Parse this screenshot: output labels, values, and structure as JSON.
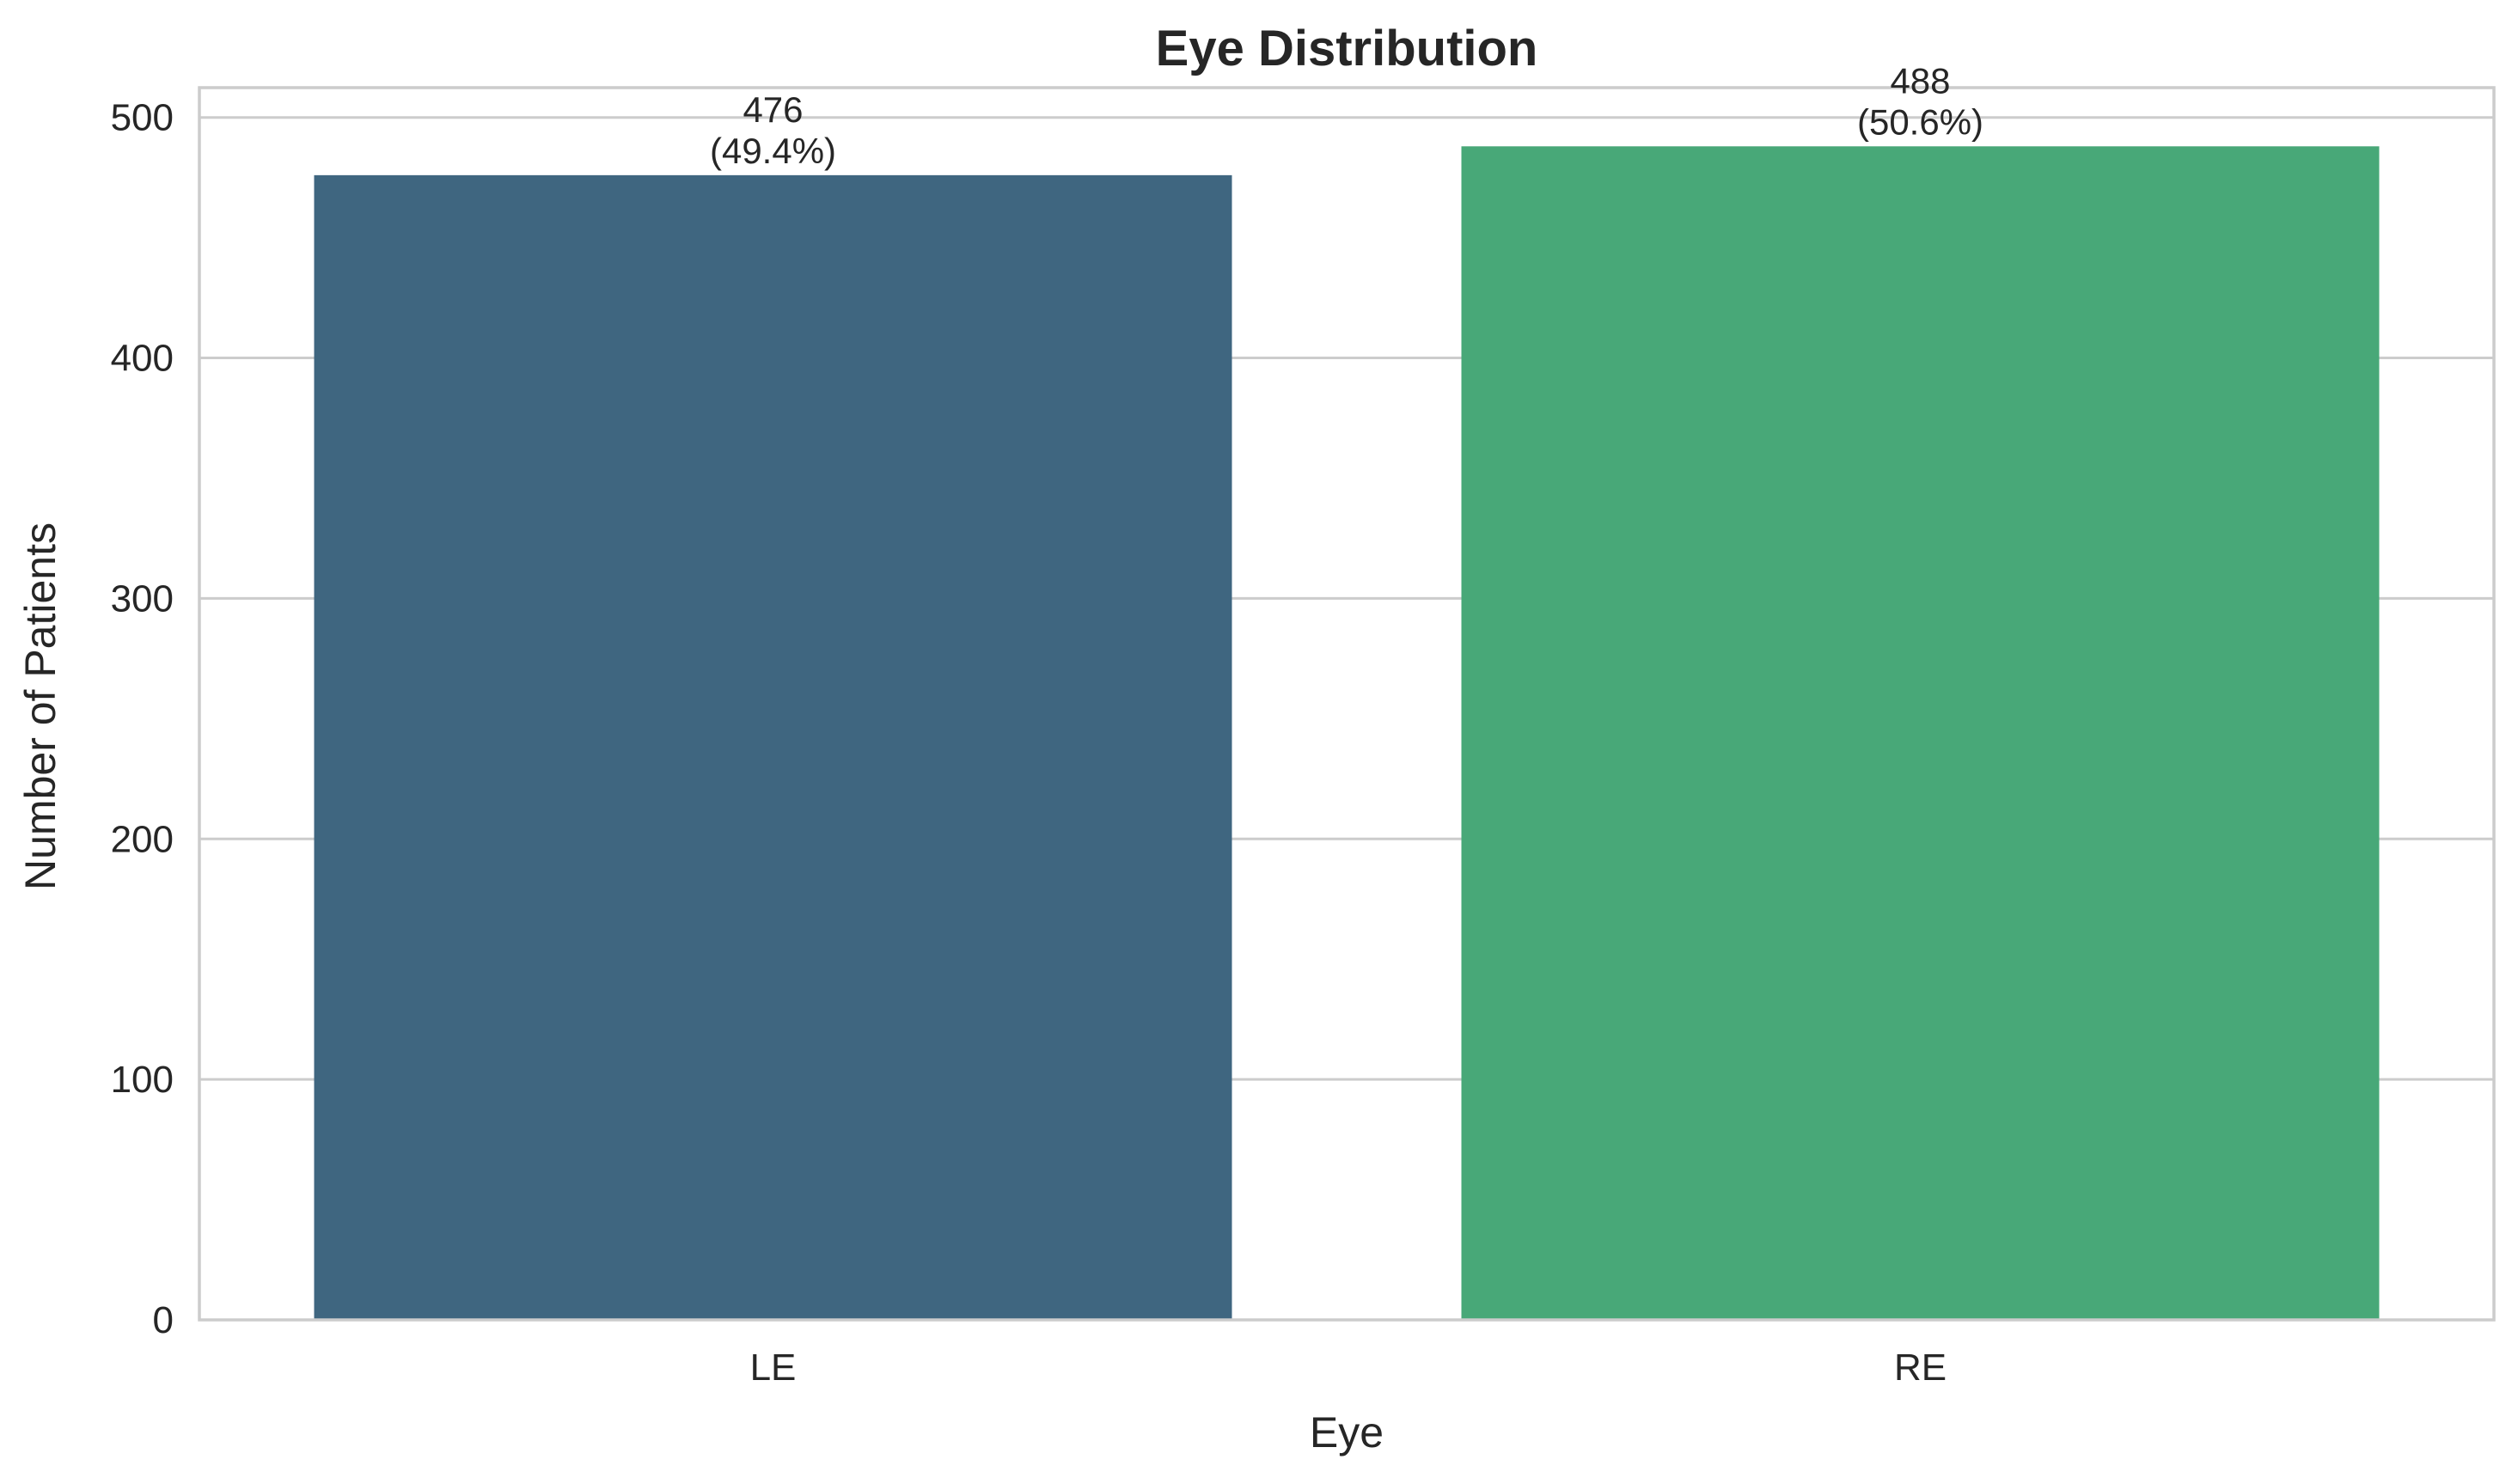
{
  "chart_data": {
    "type": "bar",
    "title": "Eye Distribution",
    "xlabel": "Eye",
    "ylabel": "Number of Patients",
    "categories": [
      "LE",
      "RE"
    ],
    "values": [
      476,
      488
    ],
    "value_labels": [
      "476",
      "488"
    ],
    "percent_labels": [
      "(49.4%)",
      "(50.6%)"
    ],
    "colors": [
      "#3f6680",
      "#48a878"
    ],
    "yticks": [
      0,
      100,
      200,
      300,
      400,
      500
    ],
    "ytick_labels": [
      "0",
      "100",
      "200",
      "300",
      "400",
      "500"
    ],
    "ylim": [
      0,
      512.4
    ],
    "grid": "horizontal",
    "legend": "none"
  }
}
